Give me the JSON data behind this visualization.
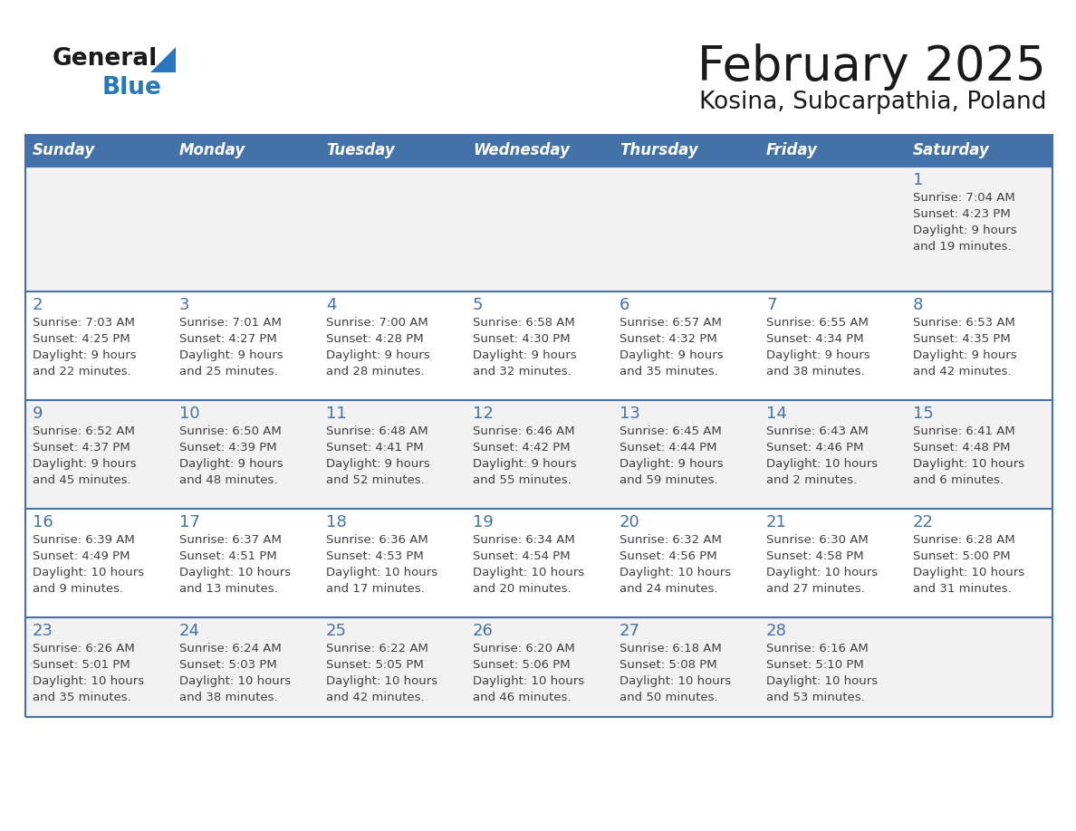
{
  "title": "February 2025",
  "subtitle": "Kosina, Subcarpathia, Poland",
  "days_of_week": [
    "Sunday",
    "Monday",
    "Tuesday",
    "Wednesday",
    "Thursday",
    "Friday",
    "Saturday"
  ],
  "header_bg": "#4472a8",
  "header_text": "#ffffff",
  "row_bg": [
    "#f2f2f2",
    "#ffffff",
    "#f2f2f2",
    "#ffffff",
    "#f2f2f2"
  ],
  "line_color": "#4472a8",
  "day_num_color": "#4472a8",
  "cell_text_color": "#404040",
  "calendar": [
    [
      null,
      null,
      null,
      null,
      null,
      null,
      {
        "day": "1",
        "sunrise": "7:04 AM",
        "sunset": "4:23 PM",
        "daylight": "9 hours\nand 19 minutes."
      }
    ],
    [
      {
        "day": "2",
        "sunrise": "7:03 AM",
        "sunset": "4:25 PM",
        "daylight": "9 hours\nand 22 minutes."
      },
      {
        "day": "3",
        "sunrise": "7:01 AM",
        "sunset": "4:27 PM",
        "daylight": "9 hours\nand 25 minutes."
      },
      {
        "day": "4",
        "sunrise": "7:00 AM",
        "sunset": "4:28 PM",
        "daylight": "9 hours\nand 28 minutes."
      },
      {
        "day": "5",
        "sunrise": "6:58 AM",
        "sunset": "4:30 PM",
        "daylight": "9 hours\nand 32 minutes."
      },
      {
        "day": "6",
        "sunrise": "6:57 AM",
        "sunset": "4:32 PM",
        "daylight": "9 hours\nand 35 minutes."
      },
      {
        "day": "7",
        "sunrise": "6:55 AM",
        "sunset": "4:34 PM",
        "daylight": "9 hours\nand 38 minutes."
      },
      {
        "day": "8",
        "sunrise": "6:53 AM",
        "sunset": "4:35 PM",
        "daylight": "9 hours\nand 42 minutes."
      }
    ],
    [
      {
        "day": "9",
        "sunrise": "6:52 AM",
        "sunset": "4:37 PM",
        "daylight": "9 hours\nand 45 minutes."
      },
      {
        "day": "10",
        "sunrise": "6:50 AM",
        "sunset": "4:39 PM",
        "daylight": "9 hours\nand 48 minutes."
      },
      {
        "day": "11",
        "sunrise": "6:48 AM",
        "sunset": "4:41 PM",
        "daylight": "9 hours\nand 52 minutes."
      },
      {
        "day": "12",
        "sunrise": "6:46 AM",
        "sunset": "4:42 PM",
        "daylight": "9 hours\nand 55 minutes."
      },
      {
        "day": "13",
        "sunrise": "6:45 AM",
        "sunset": "4:44 PM",
        "daylight": "9 hours\nand 59 minutes."
      },
      {
        "day": "14",
        "sunrise": "6:43 AM",
        "sunset": "4:46 PM",
        "daylight": "10 hours\nand 2 minutes."
      },
      {
        "day": "15",
        "sunrise": "6:41 AM",
        "sunset": "4:48 PM",
        "daylight": "10 hours\nand 6 minutes."
      }
    ],
    [
      {
        "day": "16",
        "sunrise": "6:39 AM",
        "sunset": "4:49 PM",
        "daylight": "10 hours\nand 9 minutes."
      },
      {
        "day": "17",
        "sunrise": "6:37 AM",
        "sunset": "4:51 PM",
        "daylight": "10 hours\nand 13 minutes."
      },
      {
        "day": "18",
        "sunrise": "6:36 AM",
        "sunset": "4:53 PM",
        "daylight": "10 hours\nand 17 minutes."
      },
      {
        "day": "19",
        "sunrise": "6:34 AM",
        "sunset": "4:54 PM",
        "daylight": "10 hours\nand 20 minutes."
      },
      {
        "day": "20",
        "sunrise": "6:32 AM",
        "sunset": "4:56 PM",
        "daylight": "10 hours\nand 24 minutes."
      },
      {
        "day": "21",
        "sunrise": "6:30 AM",
        "sunset": "4:58 PM",
        "daylight": "10 hours\nand 27 minutes."
      },
      {
        "day": "22",
        "sunrise": "6:28 AM",
        "sunset": "5:00 PM",
        "daylight": "10 hours\nand 31 minutes."
      }
    ],
    [
      {
        "day": "23",
        "sunrise": "6:26 AM",
        "sunset": "5:01 PM",
        "daylight": "10 hours\nand 35 minutes."
      },
      {
        "day": "24",
        "sunrise": "6:24 AM",
        "sunset": "5:03 PM",
        "daylight": "10 hours\nand 38 minutes."
      },
      {
        "day": "25",
        "sunrise": "6:22 AM",
        "sunset": "5:05 PM",
        "daylight": "10 hours\nand 42 minutes."
      },
      {
        "day": "26",
        "sunrise": "6:20 AM",
        "sunset": "5:06 PM",
        "daylight": "10 hours\nand 46 minutes."
      },
      {
        "day": "27",
        "sunrise": "6:18 AM",
        "sunset": "5:08 PM",
        "daylight": "10 hours\nand 50 minutes."
      },
      {
        "day": "28",
        "sunrise": "6:16 AM",
        "sunset": "5:10 PM",
        "daylight": "10 hours\nand 53 minutes."
      },
      null
    ]
  ]
}
